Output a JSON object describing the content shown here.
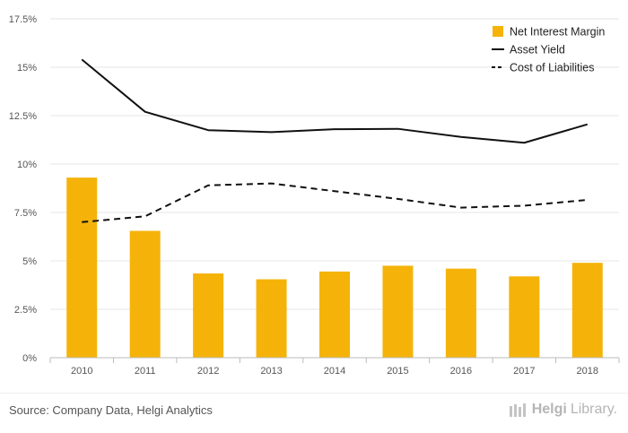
{
  "chart_data": {
    "type": "bar",
    "categories": [
      "2010",
      "2011",
      "2012",
      "2013",
      "2014",
      "2015",
      "2016",
      "2017",
      "2018"
    ],
    "series": [
      {
        "name": "Net Interest Margin",
        "kind": "bar",
        "color": "#f5b30a",
        "values": [
          9.3,
          6.55,
          4.35,
          4.05,
          4.45,
          4.75,
          4.6,
          4.2,
          4.9
        ]
      },
      {
        "name": "Asset Yield",
        "kind": "line",
        "dash": "solid",
        "color": "#111111",
        "values": [
          15.4,
          12.7,
          11.75,
          11.65,
          11.8,
          11.82,
          11.4,
          11.1,
          12.05
        ]
      },
      {
        "name": "Cost of Liabilities",
        "kind": "line",
        "dash": "dashed",
        "color": "#111111",
        "values": [
          7.0,
          7.3,
          8.9,
          9.0,
          8.6,
          8.2,
          7.75,
          7.85,
          8.15
        ]
      }
    ],
    "yticks": [
      "0%",
      "2.5%",
      "5%",
      "7.5%",
      "10%",
      "12.5%",
      "15%",
      "17.5%"
    ],
    "ylim": [
      0,
      17.5
    ],
    "grid": true,
    "legend": "top-right"
  },
  "footer": {
    "source": "Source: Company Data, Helgi Analytics",
    "brand_bold": "Helgi",
    "brand_rest": "Library."
  },
  "colors": {
    "bar": "#f5b30a",
    "line": "#111111",
    "grid": "#e6e6e6"
  }
}
